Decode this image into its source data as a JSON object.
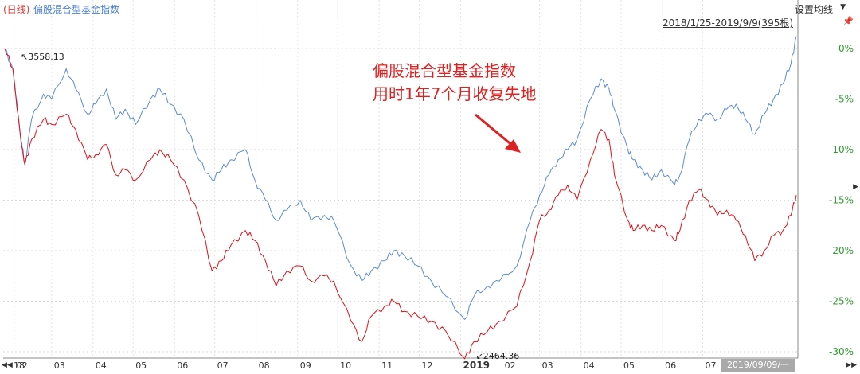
{
  "header": {
    "period_label": "(日线)",
    "index_name": "偏股混合型基金指数",
    "setting_label": "设置均线",
    "range_label": "2018/1/25-2019/9/9(395根)"
  },
  "annotation": {
    "line1": "偏股混合型基金指数",
    "line2": "用时1年7个月收复失地"
  },
  "footer": {
    "current_date": "2019/09/09/一"
  },
  "icons": {
    "pin": "pin-icon",
    "left_nav": "double-left-arrow-icon",
    "right_nav": "double-right-arrow-icon",
    "dropdown": "triangle-down-icon",
    "pointer": "red-arrow-icon"
  },
  "colors": {
    "blue_series": "#5b8bd6",
    "red_series": "#e0101a",
    "annotation": "#e02020",
    "percent_axis": "#2e9b2e"
  },
  "chart_data": {
    "type": "line",
    "title": "偏股混合型基金指数",
    "x_range": [
      "2018-01-25",
      "2019-09-09"
    ],
    "x_tick_labels": [
      "18",
      "02",
      "03",
      "04",
      "05",
      "06",
      "07",
      "08",
      "09",
      "10",
      "11",
      "12",
      "2019",
      "02",
      "03",
      "04",
      "05",
      "06",
      "07"
    ],
    "y_ticks": [
      "0%",
      "-5%",
      "-10%",
      "-15%",
      "-20%",
      "-25%",
      "-30%"
    ],
    "ylim": [
      -31,
      1
    ],
    "grid": true,
    "annotations": [
      {
        "label": "3558.13",
        "x": "2018-01-25",
        "y": 0.0
      },
      {
        "label": "2464.36",
        "x": "2019-01-04",
        "y": -30.7
      }
    ],
    "series": [
      {
        "name": "偏股混合型基金指数",
        "color": "#5b8bd6",
        "points": [
          [
            "2018-01-25",
            0
          ],
          [
            "2018-01-31",
            -2
          ],
          [
            "2018-02-06",
            -9
          ],
          [
            "2018-02-09",
            -11.5
          ],
          [
            "2018-02-14",
            -7
          ],
          [
            "2018-02-23",
            -4.5
          ],
          [
            "2018-03-01",
            -5
          ],
          [
            "2018-03-12",
            -2
          ],
          [
            "2018-03-19",
            -4
          ],
          [
            "2018-03-28",
            -6.5
          ],
          [
            "2018-04-03",
            -5.5
          ],
          [
            "2018-04-11",
            -4
          ],
          [
            "2018-04-18",
            -7
          ],
          [
            "2018-04-25",
            -6
          ],
          [
            "2018-05-03",
            -7.5
          ],
          [
            "2018-05-14",
            -5
          ],
          [
            "2018-05-21",
            -4
          ],
          [
            "2018-05-29",
            -5.5
          ],
          [
            "2018-06-08",
            -7
          ],
          [
            "2018-06-19",
            -11
          ],
          [
            "2018-06-29",
            -13
          ],
          [
            "2018-07-06",
            -12
          ],
          [
            "2018-07-13",
            -11
          ],
          [
            "2018-07-24",
            -10
          ],
          [
            "2018-07-31",
            -13
          ],
          [
            "2018-08-08",
            -15
          ],
          [
            "2018-08-16",
            -17
          ],
          [
            "2018-08-24",
            -16
          ],
          [
            "2018-09-03",
            -15
          ],
          [
            "2018-09-11",
            -17
          ],
          [
            "2018-09-21",
            -16.5
          ],
          [
            "2018-09-28",
            -17
          ],
          [
            "2018-10-11",
            -21.5
          ],
          [
            "2018-10-19",
            -23
          ],
          [
            "2018-10-26",
            -22
          ],
          [
            "2018-11-05",
            -21
          ],
          [
            "2018-11-12",
            -20
          ],
          [
            "2018-11-20",
            -20.5
          ],
          [
            "2018-11-30",
            -21.5
          ],
          [
            "2018-12-10",
            -23
          ],
          [
            "2018-12-21",
            -24.5
          ],
          [
            "2019-01-04",
            -26.8
          ],
          [
            "2019-01-11",
            -24.5
          ],
          [
            "2019-01-21",
            -23.5
          ],
          [
            "2019-01-30",
            -23
          ],
          [
            "2019-02-12",
            -21.5
          ],
          [
            "2019-02-22",
            -17
          ],
          [
            "2019-03-01",
            -14.5
          ],
          [
            "2019-03-08",
            -12.5
          ],
          [
            "2019-03-15",
            -11
          ],
          [
            "2019-03-22",
            -10
          ],
          [
            "2019-03-29",
            -9
          ],
          [
            "2019-04-08",
            -5
          ],
          [
            "2019-04-16",
            -3
          ],
          [
            "2019-04-22",
            -4
          ],
          [
            "2019-04-26",
            -6
          ],
          [
            "2019-05-06",
            -10
          ],
          [
            "2019-05-10",
            -11
          ],
          [
            "2019-05-17",
            -12
          ],
          [
            "2019-05-24",
            -13
          ],
          [
            "2019-05-31",
            -12
          ],
          [
            "2019-06-10",
            -13.5
          ],
          [
            "2019-06-14",
            -12.5
          ],
          [
            "2019-06-21",
            -9
          ],
          [
            "2019-06-28",
            -7
          ],
          [
            "2019-07-05",
            -6.5
          ],
          [
            "2019-07-12",
            -7
          ],
          [
            "2019-07-19",
            -6
          ],
          [
            "2019-07-26",
            -5.5
          ],
          [
            "2019-08-02",
            -7
          ],
          [
            "2019-08-09",
            -8.5
          ],
          [
            "2019-08-16",
            -6.5
          ],
          [
            "2019-08-23",
            -5
          ],
          [
            "2019-08-30",
            -3.5
          ],
          [
            "2019-09-05",
            -1.5
          ],
          [
            "2019-09-09",
            1.2
          ]
        ]
      },
      {
        "name": "",
        "color": "#e0101a",
        "points": [
          [
            "2018-01-25",
            0
          ],
          [
            "2018-01-31",
            -2
          ],
          [
            "2018-02-06",
            -9
          ],
          [
            "2018-02-09",
            -11.5
          ],
          [
            "2018-02-14",
            -9
          ],
          [
            "2018-02-23",
            -7
          ],
          [
            "2018-03-01",
            -7.5
          ],
          [
            "2018-03-12",
            -6.5
          ],
          [
            "2018-03-19",
            -8
          ],
          [
            "2018-03-28",
            -11
          ],
          [
            "2018-04-03",
            -10.5
          ],
          [
            "2018-04-11",
            -9.5
          ],
          [
            "2018-04-18",
            -12.5
          ],
          [
            "2018-04-25",
            -12
          ],
          [
            "2018-05-03",
            -13
          ],
          [
            "2018-05-14",
            -11
          ],
          [
            "2018-05-21",
            -10
          ],
          [
            "2018-05-29",
            -11
          ],
          [
            "2018-06-08",
            -13
          ],
          [
            "2018-06-19",
            -16.5
          ],
          [
            "2018-06-29",
            -22
          ],
          [
            "2018-07-06",
            -21
          ],
          [
            "2018-07-13",
            -19.5
          ],
          [
            "2018-07-24",
            -18
          ],
          [
            "2018-07-31",
            -19
          ],
          [
            "2018-08-08",
            -21
          ],
          [
            "2018-08-16",
            -23.5
          ],
          [
            "2018-08-24",
            -22
          ],
          [
            "2018-09-03",
            -21.5
          ],
          [
            "2018-09-11",
            -23
          ],
          [
            "2018-09-21",
            -22.5
          ],
          [
            "2018-09-28",
            -23
          ],
          [
            "2018-10-11",
            -27
          ],
          [
            "2018-10-19",
            -29
          ],
          [
            "2018-10-26",
            -26.5
          ],
          [
            "2018-11-05",
            -25.5
          ],
          [
            "2018-11-12",
            -25
          ],
          [
            "2018-11-20",
            -26
          ],
          [
            "2018-11-30",
            -26.5
          ],
          [
            "2018-12-10",
            -27
          ],
          [
            "2018-12-21",
            -28
          ],
          [
            "2019-01-04",
            -30.7
          ],
          [
            "2019-01-11",
            -29
          ],
          [
            "2019-01-21",
            -28
          ],
          [
            "2019-01-30",
            -27
          ],
          [
            "2019-02-12",
            -25.5
          ],
          [
            "2019-02-22",
            -21
          ],
          [
            "2019-03-01",
            -17
          ],
          [
            "2019-03-08",
            -16
          ],
          [
            "2019-03-15",
            -14.5
          ],
          [
            "2019-03-22",
            -13.5
          ],
          [
            "2019-03-29",
            -15
          ],
          [
            "2019-04-08",
            -11
          ],
          [
            "2019-04-16",
            -8
          ],
          [
            "2019-04-22",
            -9
          ],
          [
            "2019-04-26",
            -12.5
          ],
          [
            "2019-05-06",
            -17
          ],
          [
            "2019-05-10",
            -18
          ],
          [
            "2019-05-17",
            -17.5
          ],
          [
            "2019-05-24",
            -18
          ],
          [
            "2019-05-31",
            -17.5
          ],
          [
            "2019-06-10",
            -19
          ],
          [
            "2019-06-14",
            -18
          ],
          [
            "2019-06-21",
            -15
          ],
          [
            "2019-06-28",
            -14
          ],
          [
            "2019-07-05",
            -15
          ],
          [
            "2019-07-12",
            -16.5
          ],
          [
            "2019-07-19",
            -16
          ],
          [
            "2019-07-26",
            -17
          ],
          [
            "2019-08-02",
            -18.5
          ],
          [
            "2019-08-09",
            -21
          ],
          [
            "2019-08-16",
            -20
          ],
          [
            "2019-08-23",
            -18.5
          ],
          [
            "2019-08-30",
            -18
          ],
          [
            "2019-09-05",
            -16.5
          ],
          [
            "2019-09-09",
            -14.5
          ]
        ]
      }
    ]
  }
}
